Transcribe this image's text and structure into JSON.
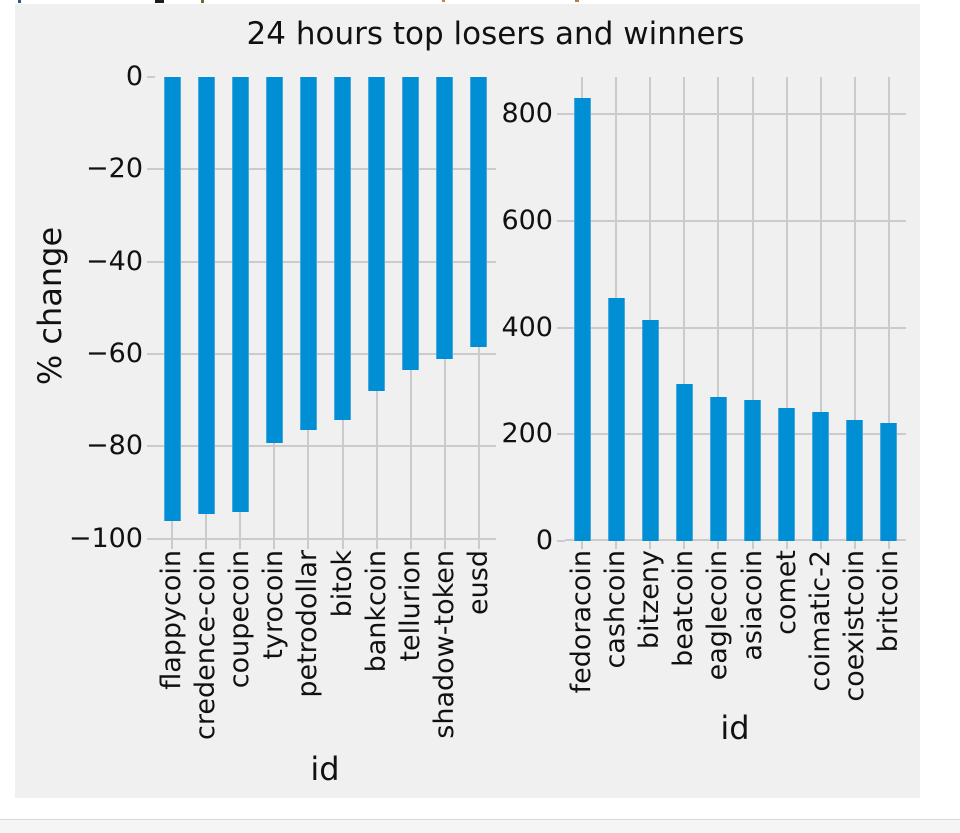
{
  "figure": {
    "title": "24 hours top losers and winners",
    "background_color": "#f0f0f0",
    "bar_color": "#008fd5",
    "grid_color": "#cbcbcb",
    "text_color": "#111111",
    "page_background": "#ffffff"
  },
  "chart_data": [
    {
      "type": "bar",
      "side": "losers",
      "xlabel": "id",
      "ylabel": "% change",
      "categories": [
        "flappycoin",
        "credence-coin",
        "coupecoin",
        "tyrocoin",
        "petrodollar",
        "bitok",
        "bankcoin",
        "tellurion",
        "shadow-token",
        "eusd"
      ],
      "values": [
        -96.1,
        -94.6,
        -94.2,
        -79.2,
        -76.4,
        -74.2,
        -68.1,
        -63.4,
        -61.0,
        -58.5
      ],
      "ytick_values": [
        0,
        -20,
        -40,
        -60,
        -80,
        -100
      ],
      "ytick_labels": [
        "0",
        "−20",
        "−40",
        "−60",
        "−80",
        "−100"
      ],
      "ylim": [
        -100.5,
        0
      ],
      "grid": true,
      "legend": "none"
    },
    {
      "type": "bar",
      "side": "winners",
      "xlabel": "id",
      "ylabel": "",
      "categories": [
        "fedoracoin",
        "cashcoin",
        "bitzeny",
        "beatcoin",
        "eaglecoin",
        "asiacoin",
        "comet",
        "coimatic-2",
        "coexistcoin",
        "britcoin"
      ],
      "values": [
        830,
        456,
        415,
        295,
        270,
        265,
        249,
        242,
        227,
        221
      ],
      "ytick_values": [
        800,
        600,
        400,
        200,
        0
      ],
      "ytick_labels": [
        "800",
        "600",
        "400",
        "200",
        "0"
      ],
      "ylim": [
        0,
        870
      ],
      "grid": true,
      "legend": "none"
    }
  ],
  "bottom_panel": {
    "label": ""
  }
}
